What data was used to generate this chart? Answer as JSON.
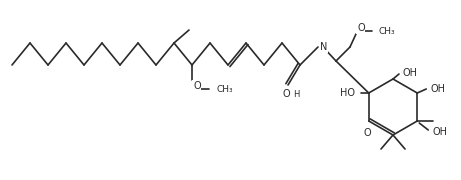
{
  "background_color": "#ffffff",
  "line_color": "#2a2a2a",
  "text_color": "#2a2a2a",
  "line_width": 1.2,
  "font_size": 7.0,
  "fig_width": 4.61,
  "fig_height": 1.8,
  "dpi": 100,
  "xlim": [
    0,
    461
  ],
  "ylim": [
    0,
    180
  ]
}
